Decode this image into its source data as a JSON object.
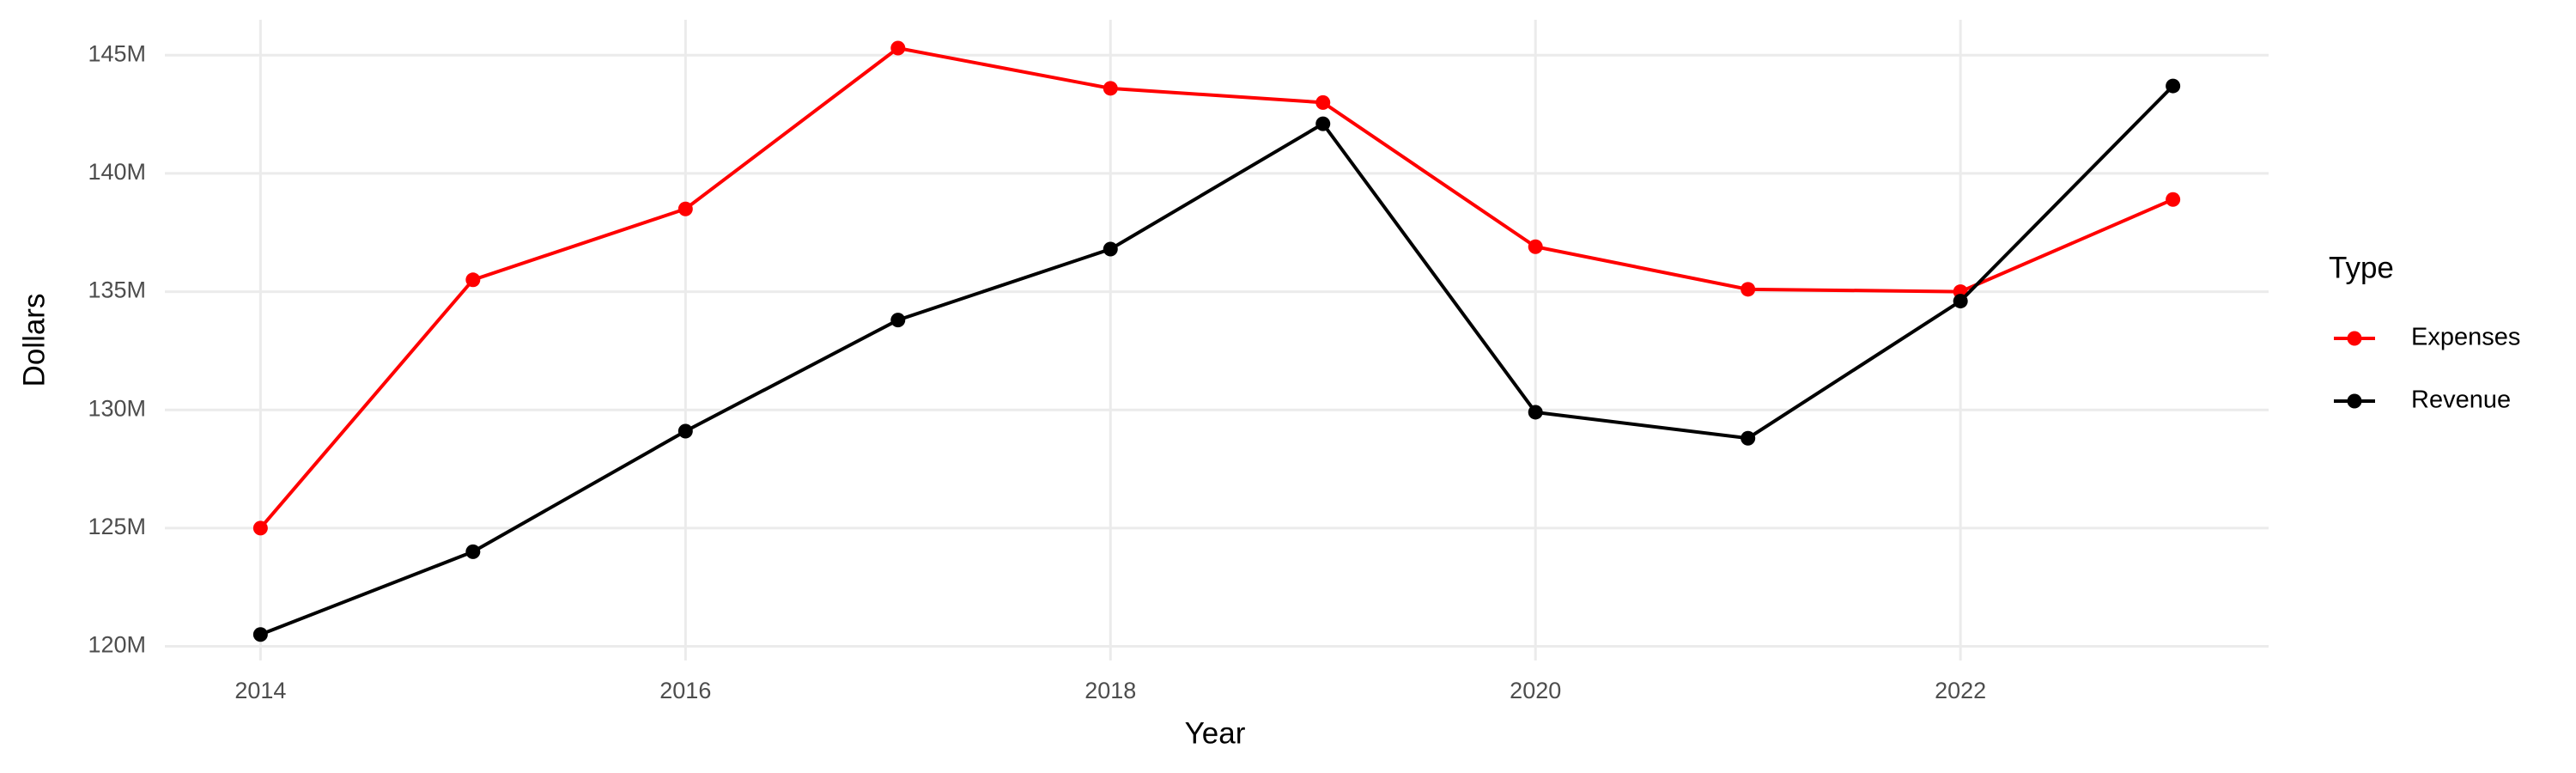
{
  "chart_data": {
    "type": "line",
    "x_label": "Year",
    "y_label": "Dollars",
    "legend_title": "Type",
    "x": [
      2014,
      2015,
      2016,
      2017,
      2018,
      2019,
      2020,
      2021,
      2022,
      2023
    ],
    "series": [
      {
        "name": "Expenses",
        "color": "#ff0000",
        "values": [
          125000000,
          135500000,
          138500000,
          145300000,
          143600000,
          143000000,
          136900000,
          135100000,
          135000000,
          138900000
        ]
      },
      {
        "name": "Revenue",
        "color": "#000000",
        "values": [
          120500000,
          124000000,
          129100000,
          133800000,
          136800000,
          142100000,
          129900000,
          128800000,
          134600000,
          143700000
        ]
      }
    ],
    "xlim": [
      2013.55,
      2023.45
    ],
    "xticks": [
      2014,
      2016,
      2018,
      2020,
      2022
    ],
    "ylim": [
      119400000,
      146500000
    ],
    "yticks": [
      {
        "value": 120000000,
        "label": "120M"
      },
      {
        "value": 125000000,
        "label": "125M"
      },
      {
        "value": 130000000,
        "label": "130M"
      },
      {
        "value": 135000000,
        "label": "135M"
      },
      {
        "value": 140000000,
        "label": "140M"
      },
      {
        "value": 145000000,
        "label": "145M"
      }
    ],
    "grid": true,
    "legend_position": "right"
  }
}
